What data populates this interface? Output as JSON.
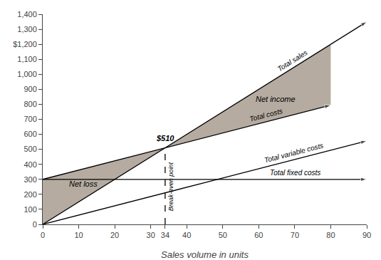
{
  "chart_data": {
    "type": "line",
    "xlabel": "Sales volume in units",
    "xlim": [
      0,
      90
    ],
    "ylim": [
      0,
      1400
    ],
    "xticks": [
      0,
      10,
      20,
      30,
      34,
      40,
      50,
      60,
      70,
      80,
      90
    ],
    "yticks": [
      0,
      100,
      200,
      300,
      400,
      500,
      600,
      700,
      800,
      900,
      {
        "value": 1000,
        "label": "1,000"
      },
      {
        "value": 1100,
        "label": "1,100"
      },
      {
        "value": 1200,
        "label": "$1,200"
      },
      {
        "value": 1300,
        "label": "1,300"
      },
      {
        "value": 1400,
        "label": "1,400"
      }
    ],
    "grid": false,
    "series": [
      {
        "name": "Total sales",
        "color": "#000000",
        "marker": "arrow",
        "line_style": "solid",
        "x": [
          0,
          90
        ],
        "values": [
          0,
          1350
        ]
      },
      {
        "name": "Total costs",
        "color": "#000000",
        "marker": "arrow",
        "line_style": "solid",
        "x": [
          0,
          80
        ],
        "values": [
          300,
          794.4
        ]
      },
      {
        "name": "Total variable costs",
        "color": "#000000",
        "marker": "arrow",
        "line_style": "solid",
        "x": [
          0,
          90
        ],
        "values": [
          0,
          556.2
        ]
      },
      {
        "name": "Total fixed costs",
        "color": "#000000",
        "marker": "arrow",
        "line_style": "solid",
        "x": [
          0,
          90
        ],
        "values": [
          300,
          300
        ]
      },
      {
        "name": "Break-even point",
        "color": "#000000",
        "line_style": "dashed",
        "x": [
          34,
          34
        ],
        "values": [
          0,
          510
        ]
      }
    ],
    "areas": [
      {
        "name": "Net loss",
        "color": "#b5aba0",
        "x": [
          0,
          0,
          34
        ],
        "values": [
          0,
          300,
          510
        ]
      },
      {
        "name": "Net income",
        "color": "#b5aba0",
        "x": [
          34,
          80,
          80
        ],
        "values": [
          510,
          1200,
          794.4
        ]
      }
    ],
    "annotations": [
      {
        "text": "$510",
        "x": 34,
        "y": 510
      }
    ]
  }
}
